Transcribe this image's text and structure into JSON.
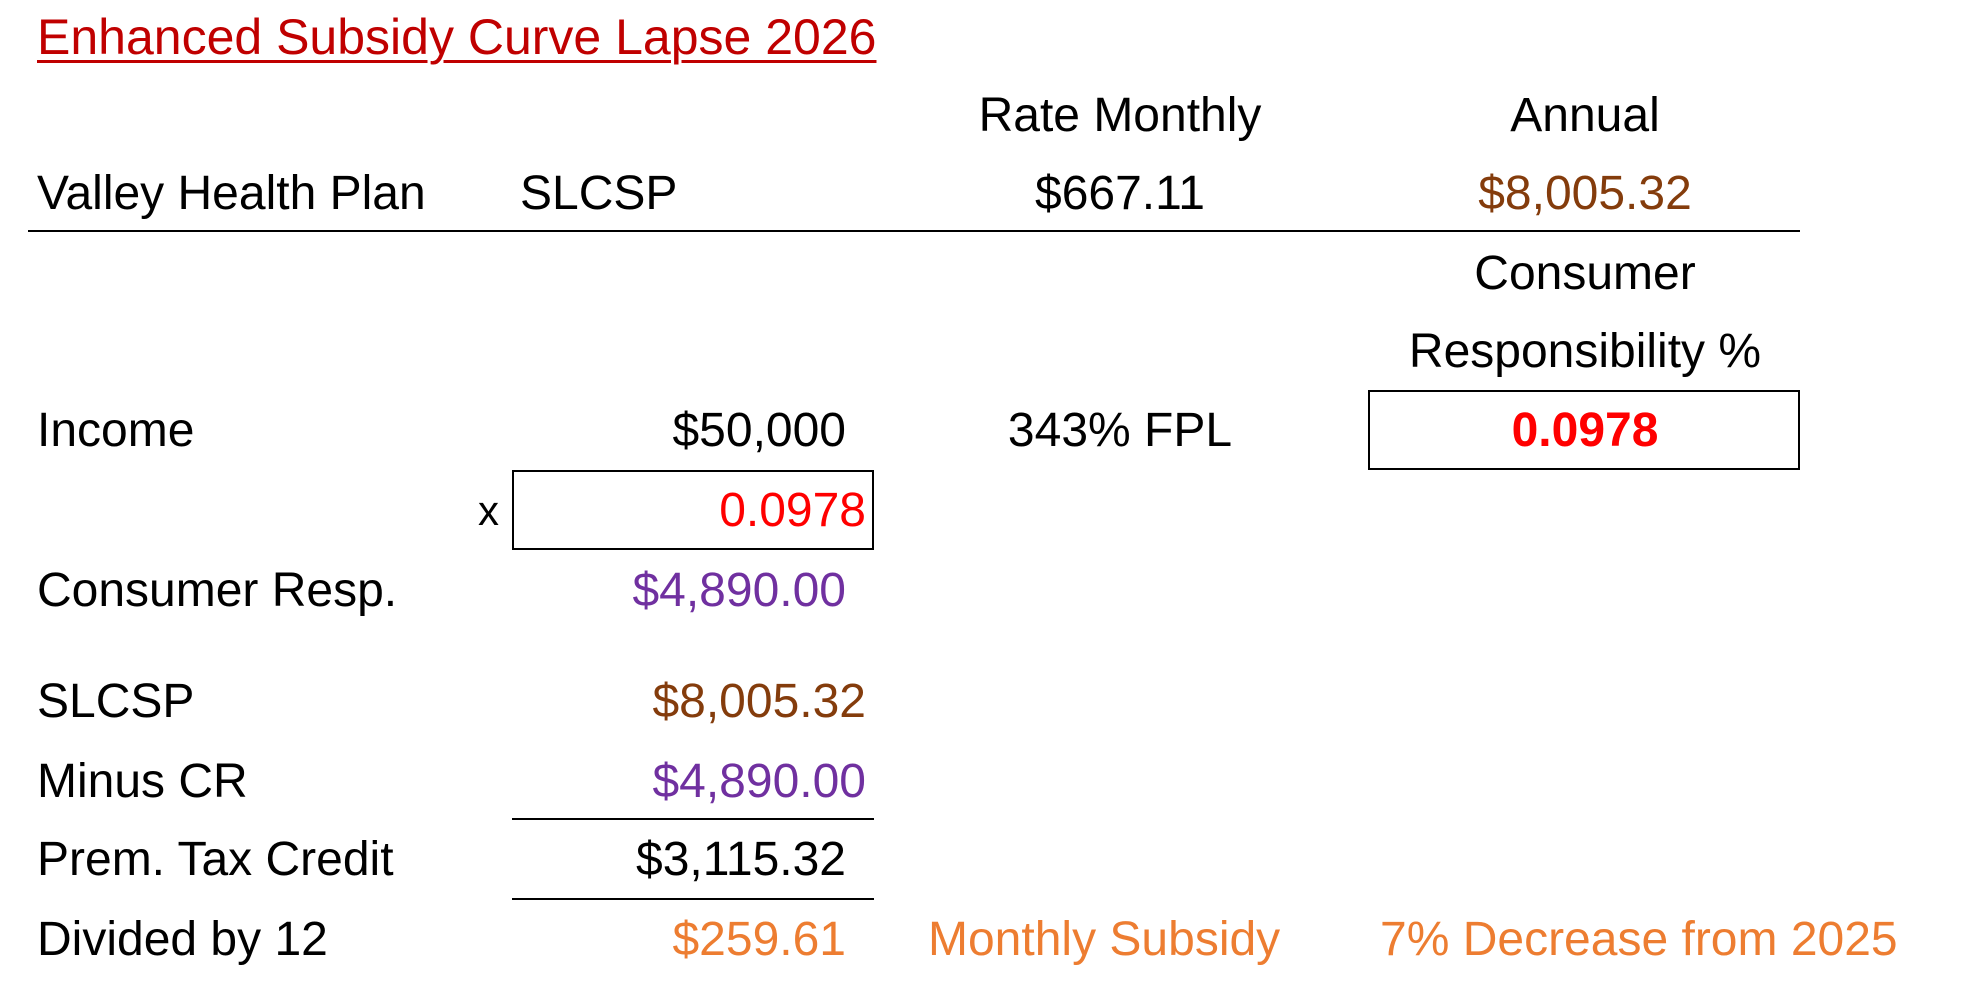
{
  "title": "Enhanced Subsidy Curve Lapse 2026",
  "headers": {
    "rate_monthly": "Rate Monthly",
    "annual": "Annual",
    "consumer_responsibility_line1": "Consumer",
    "consumer_responsibility_line2": "Responsibility %"
  },
  "plan": {
    "name": "Valley Health Plan",
    "type": "SLCSP",
    "rate_monthly": "$667.11",
    "annual": "$8,005.32"
  },
  "income": {
    "label": "Income",
    "value": "$50,000",
    "fpl": "343% FPL",
    "consumer_responsibility_pct": "0.0978"
  },
  "multiplier": {
    "symbol": "x",
    "value": "0.0978"
  },
  "consumer_resp": {
    "label": "Consumer Resp.",
    "value": "$4,890.00"
  },
  "slcsp": {
    "label": "SLCSP",
    "value": "$8,005.32"
  },
  "minus_cr": {
    "label": "Minus CR",
    "value": "$4,890.00"
  },
  "ptc": {
    "label": "Prem. Tax Credit",
    "value": "$3,115.32"
  },
  "monthly": {
    "label": "Divided by 12",
    "value": "$259.61",
    "description": "Monthly Subsidy",
    "note": "7% Decrease from 2025"
  },
  "colors": {
    "title": "#c00000",
    "annual_slcsp": "#843c0c",
    "consumer_resp": "#7030a0",
    "monthly_subsidy": "#ed7d31",
    "responsibility_pct": "#ff0000"
  }
}
